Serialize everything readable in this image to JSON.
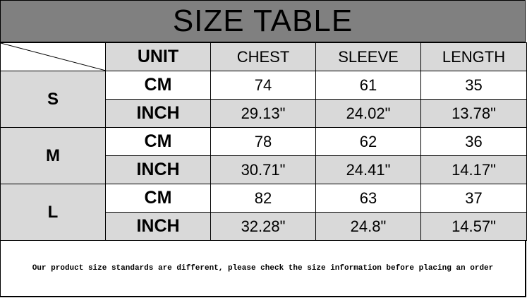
{
  "title": "SIZE TABLE",
  "headers": [
    "UNIT",
    "CHEST",
    "SLEEVE",
    "LENGTH"
  ],
  "sizes": [
    {
      "size": "S",
      "rows": [
        {
          "unit": "CM",
          "chest": "74",
          "sleeve": "61",
          "length": "35"
        },
        {
          "unit": "INCH",
          "chest": "29.13\"",
          "sleeve": "24.02\"",
          "length": "13.78\""
        }
      ]
    },
    {
      "size": "M",
      "rows": [
        {
          "unit": "CM",
          "chest": "78",
          "sleeve": "62",
          "length": "36"
        },
        {
          "unit": "INCH",
          "chest": "30.71\"",
          "sleeve": "24.41\"",
          "length": "14.17\""
        }
      ]
    },
    {
      "size": "L",
      "rows": [
        {
          "unit": "CM",
          "chest": "82",
          "sleeve": "63",
          "length": "37"
        },
        {
          "unit": "INCH",
          "chest": "32.28\"",
          "sleeve": "24.8\"",
          "length": "14.57\""
        }
      ]
    }
  ],
  "footer": "Our product size standards are different, please check the size information before placing an order",
  "colors": {
    "title_bg": "#808080",
    "shade": "#d9d9d9"
  }
}
